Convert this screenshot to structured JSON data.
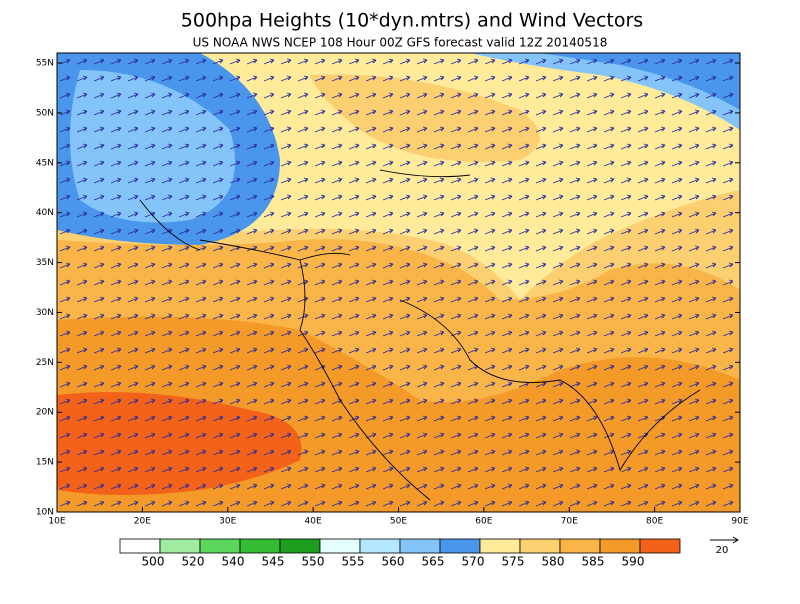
{
  "header": {
    "title": "500hpa Heights (10*dyn.mtrs) and Wind Vectors",
    "subtitle": "US NOAA NWS NCEP 108 Hour 00Z GFS forecast valid 12Z 20140518"
  },
  "map": {
    "lat_labels": [
      "10N",
      "15N",
      "20N",
      "25N",
      "30N",
      "35N",
      "40N",
      "45N",
      "50N",
      "55N"
    ],
    "lon_labels": [
      "10E",
      "20E",
      "30E",
      "40E",
      "50E",
      "60E",
      "70E",
      "80E",
      "90E"
    ]
  },
  "colorbar": {
    "labels": [
      "500",
      "520",
      "540",
      "545",
      "550",
      "555",
      "560",
      "565",
      "570",
      "575",
      "580",
      "585",
      "590"
    ],
    "colors": [
      "#ffffff",
      "#a0eca0",
      "#5cd65c",
      "#34bc34",
      "#1e9e1e",
      "#e4ffff",
      "#b4e8ff",
      "#84c4f8",
      "#4a96ec",
      "#ffeb99",
      "#fcd070",
      "#f9b548",
      "#f49a28",
      "#f26218"
    ]
  },
  "vector_reference": "20"
}
